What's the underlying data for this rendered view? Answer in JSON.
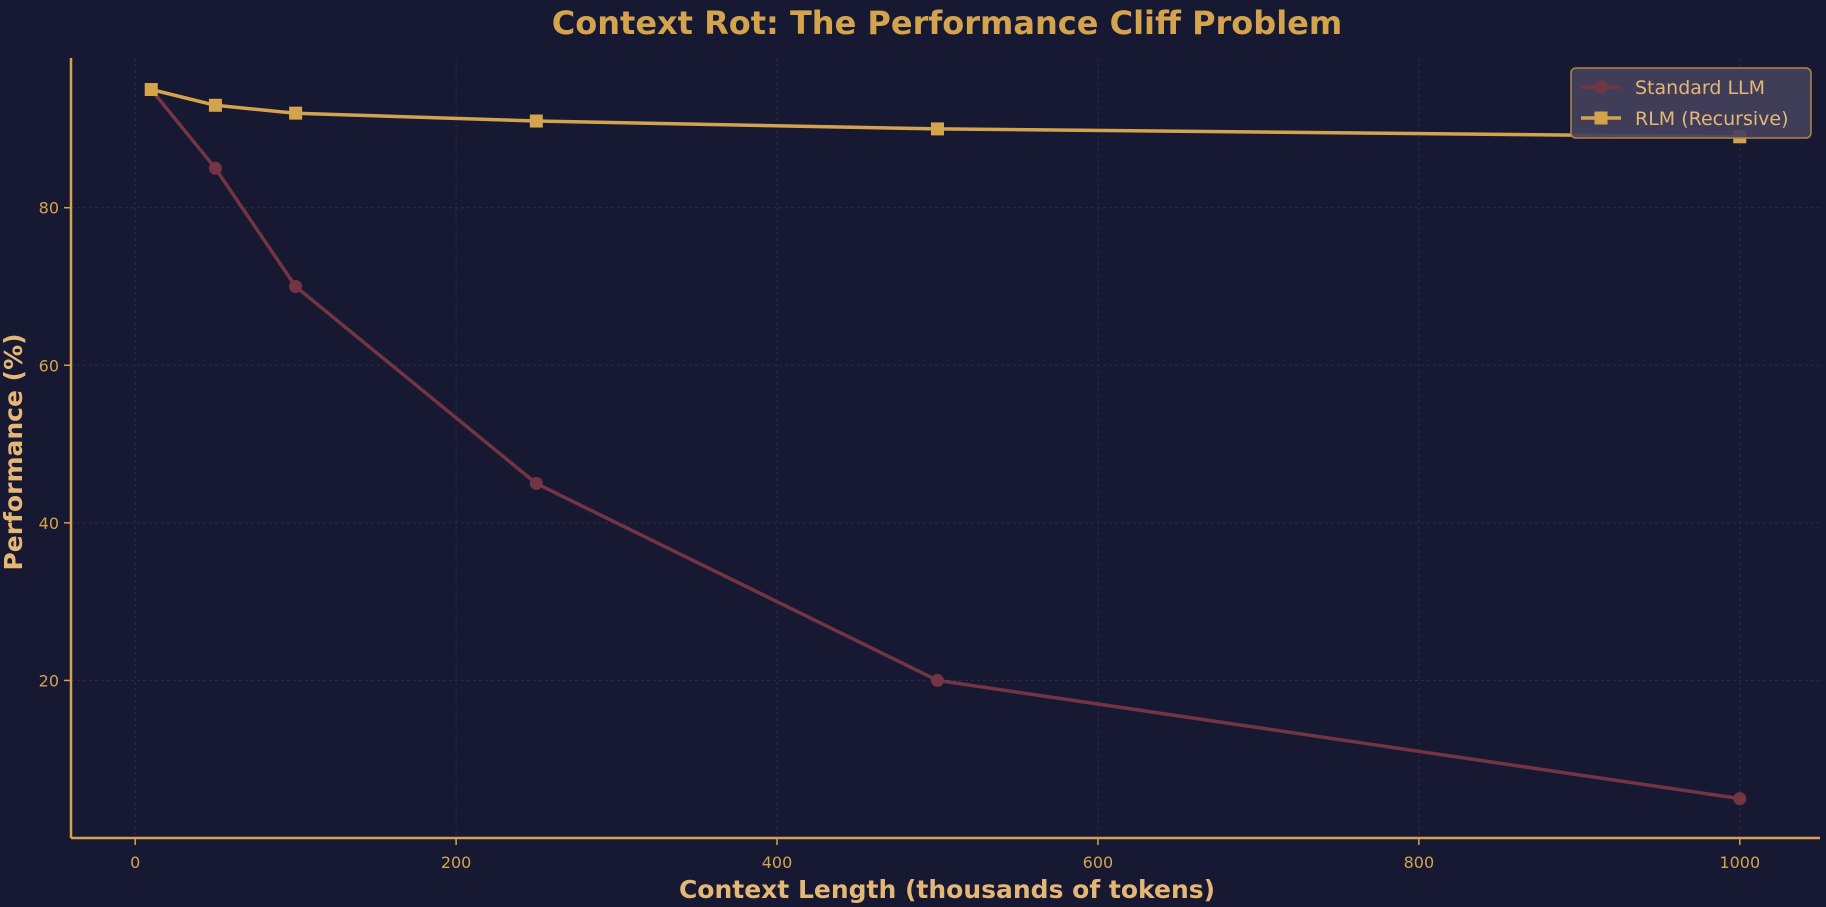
{
  "chart_data": {
    "type": "line",
    "title": "Context Rot: The Performance Cliff Problem",
    "xlabel": "Context Length (thousands of tokens)",
    "ylabel": "Performance (%)",
    "xlim": [
      -40,
      1050
    ],
    "ylim": [
      0,
      99
    ],
    "xticks": [
      0,
      200,
      400,
      600,
      800,
      1000
    ],
    "yticks": [
      20,
      40,
      60,
      80
    ],
    "grid": true,
    "legend_position": "top-right",
    "x": [
      10,
      50,
      100,
      250,
      500,
      1000
    ],
    "series": [
      {
        "name": "Standard LLM",
        "values": [
          95,
          85,
          70,
          45,
          20,
          5
        ],
        "color": "#733544",
        "marker": "circle"
      },
      {
        "name": "RLM (Recursive)",
        "values": [
          95,
          93,
          92,
          91,
          90,
          89
        ],
        "color": "#d4a34e",
        "marker": "square"
      }
    ],
    "colors": {
      "background": "#171831",
      "axis": "#d4a34e",
      "grid": "#2c2c44",
      "legend_bg": "#44415b",
      "legend_border": "#b08648"
    }
  }
}
